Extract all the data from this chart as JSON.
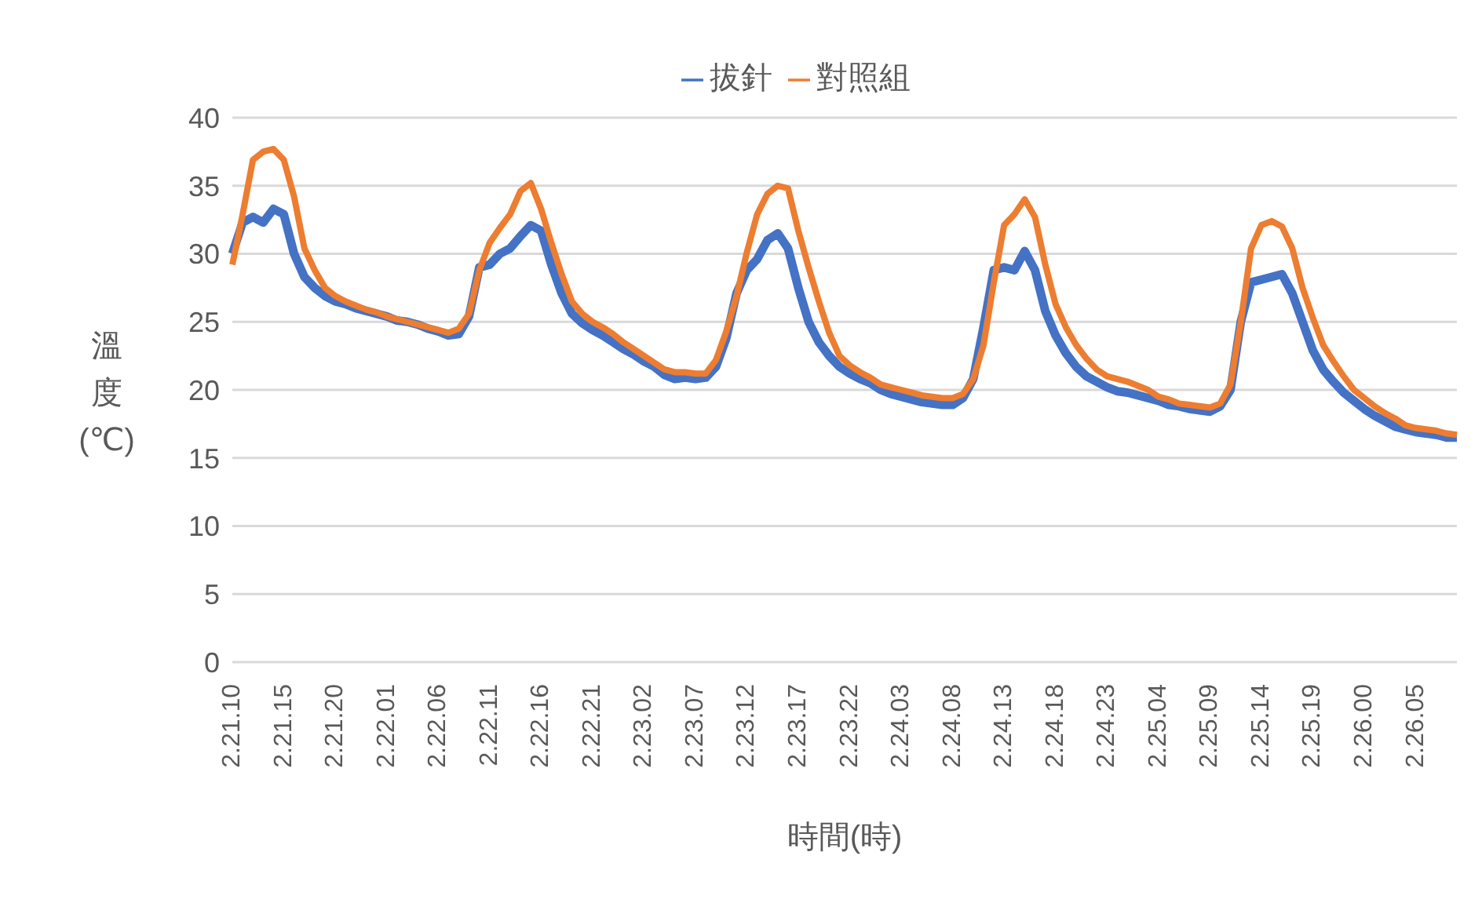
{
  "chart_data": {
    "type": "line",
    "xlabel": "時間(時)",
    "ylabel": "溫度(℃)",
    "ylim": [
      0,
      40
    ],
    "yticks": [
      0,
      5,
      10,
      15,
      20,
      25,
      30,
      35,
      40
    ],
    "grid": "y",
    "legend": "top",
    "marker": "none",
    "line_style": "solid",
    "categories": [
      "2.21.10",
      null,
      null,
      null,
      null,
      "2.21.15",
      null,
      null,
      null,
      null,
      "2.21.20",
      null,
      null,
      null,
      null,
      "2.22.01",
      null,
      null,
      null,
      null,
      "2.22.06",
      null,
      null,
      null,
      null,
      "2.22.11",
      null,
      null,
      null,
      null,
      "2.22.16",
      null,
      null,
      null,
      null,
      "2.22.21",
      null,
      null,
      null,
      null,
      "2.23.02",
      null,
      null,
      null,
      null,
      "2.23.07",
      null,
      null,
      null,
      null,
      "2.23.12",
      null,
      null,
      null,
      null,
      "2.23.17",
      null,
      null,
      null,
      null,
      "2.23.22",
      null,
      null,
      null,
      null,
      "2.24.03",
      null,
      null,
      null,
      null,
      "2.24.08",
      null,
      null,
      null,
      null,
      "2.24.13",
      null,
      null,
      null,
      null,
      "2.24.18",
      null,
      null,
      null,
      null,
      "2.24.23",
      null,
      null,
      null,
      null,
      "2.25.04",
      null,
      null,
      null,
      null,
      "2.25.09",
      null,
      null,
      null,
      null,
      "2.25.14",
      null,
      null,
      null,
      null,
      "2.25.19",
      null,
      null,
      null,
      null,
      "2.26.00",
      null,
      null,
      null,
      null,
      "2.26.05",
      null,
      null,
      null,
      null
    ],
    "series": [
      {
        "name": "拔針",
        "color": "#4472c4",
        "values": [
          30.0,
          32.3,
          32.7,
          32.3,
          33.3,
          32.9,
          30.0,
          28.3,
          27.5,
          26.9,
          26.5,
          26.3,
          26.0,
          25.8,
          25.6,
          25.4,
          25.1,
          25.0,
          24.8,
          24.5,
          24.3,
          24.0,
          24.1,
          25.4,
          29.0,
          29.2,
          30.0,
          30.4,
          31.3,
          32.1,
          31.7,
          29.2,
          27.1,
          25.6,
          24.9,
          24.4,
          24.0,
          23.5,
          23.0,
          22.6,
          22.1,
          21.7,
          21.1,
          20.8,
          20.9,
          20.8,
          20.9,
          21.7,
          23.8,
          27.1,
          28.8,
          29.6,
          31.0,
          31.5,
          30.4,
          27.5,
          25.0,
          23.5,
          22.5,
          21.7,
          21.2,
          20.8,
          20.5,
          20.0,
          19.7,
          19.5,
          19.3,
          19.1,
          19.0,
          18.9,
          18.9,
          19.4,
          20.8,
          24.6,
          28.8,
          29.0,
          28.8,
          30.2,
          28.8,
          25.8,
          24.0,
          22.7,
          21.7,
          21.0,
          20.6,
          20.2,
          19.9,
          19.8,
          19.6,
          19.4,
          19.2,
          18.9,
          18.8,
          18.6,
          18.5,
          18.4,
          18.8,
          20.0,
          25.0,
          27.9,
          28.1,
          28.3,
          28.5,
          27.1,
          25.0,
          22.9,
          21.5,
          20.6,
          19.8,
          19.2,
          18.6,
          18.1,
          17.7,
          17.3,
          17.1,
          16.9,
          16.8,
          16.7,
          16.5,
          16.5
        ]
      },
      {
        "name": "對照組",
        "color": "#ed7d31",
        "values": [
          29.2,
          32.9,
          36.9,
          37.5,
          37.7,
          36.9,
          34.2,
          30.4,
          28.8,
          27.5,
          26.9,
          26.5,
          26.2,
          25.9,
          25.7,
          25.4,
          25.2,
          25.0,
          24.8,
          24.6,
          24.4,
          24.2,
          24.5,
          25.6,
          28.8,
          30.8,
          31.9,
          32.9,
          34.6,
          35.2,
          33.3,
          30.8,
          28.5,
          26.5,
          25.6,
          25.0,
          24.6,
          24.1,
          23.5,
          23.0,
          22.5,
          22.0,
          21.5,
          21.3,
          21.3,
          21.2,
          21.2,
          22.2,
          24.3,
          26.9,
          30.1,
          32.9,
          34.4,
          35.0,
          34.8,
          31.7,
          29.0,
          26.5,
          24.2,
          22.5,
          21.8,
          21.3,
          20.9,
          20.4,
          20.2,
          20.0,
          19.8,
          19.6,
          19.5,
          19.4,
          19.4,
          19.7,
          20.8,
          23.3,
          27.9,
          32.1,
          32.9,
          34.0,
          32.7,
          29.2,
          26.3,
          24.6,
          23.3,
          22.3,
          21.5,
          21.0,
          20.8,
          20.6,
          20.3,
          20.0,
          19.5,
          19.3,
          19.0,
          18.9,
          18.8,
          18.7,
          19.0,
          20.4,
          25.0,
          30.4,
          32.1,
          32.4,
          32.0,
          30.4,
          27.5,
          25.3,
          23.3,
          22.1,
          21.0,
          20.0,
          19.4,
          18.8,
          18.3,
          17.9,
          17.4,
          17.2,
          17.1,
          17.0,
          16.8,
          16.7
        ]
      }
    ]
  }
}
